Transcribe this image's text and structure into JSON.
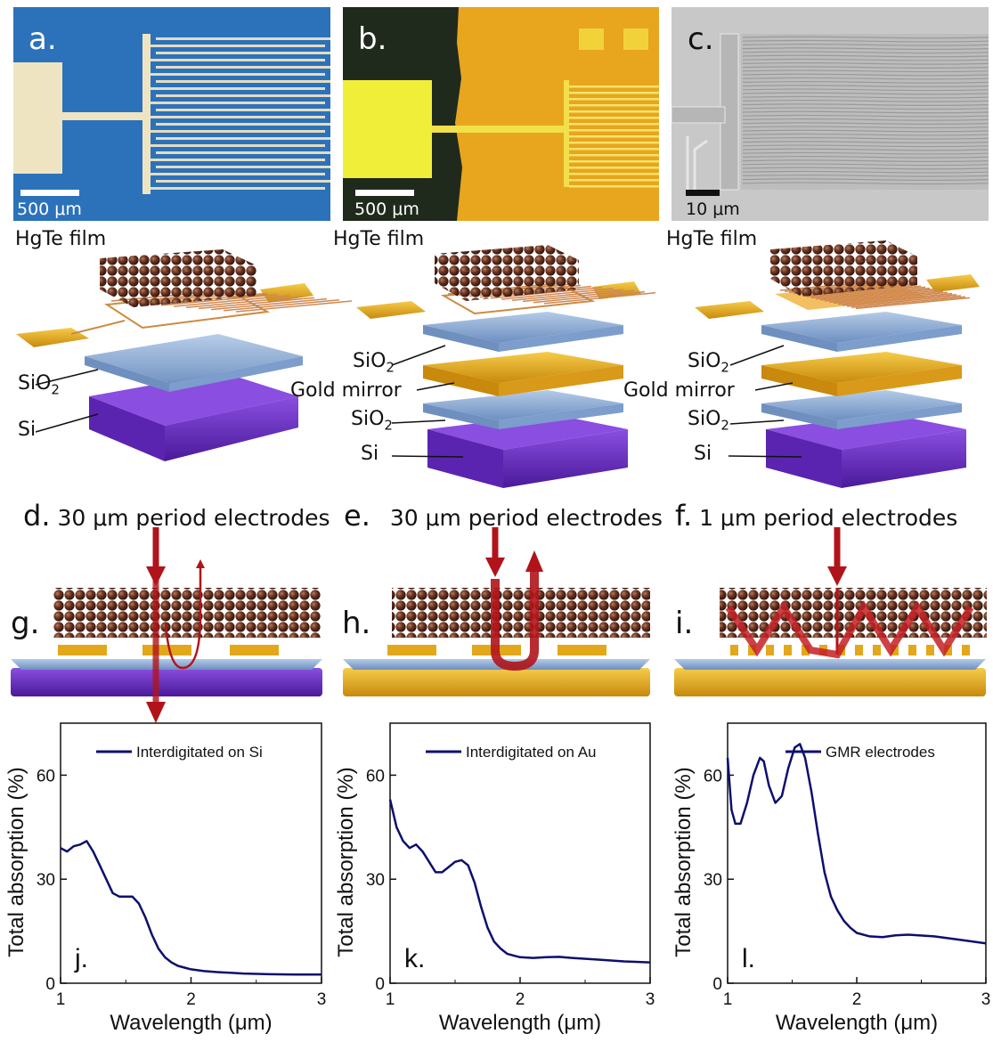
{
  "micrographs": [
    {
      "letter": "a.",
      "scale": "500 μm"
    },
    {
      "letter": "b.",
      "scale": "500 μm"
    },
    {
      "letter": "c.",
      "scale": "10 μm"
    }
  ],
  "stacks": [
    {
      "film": "HgTe film",
      "sio2_top": "SiO",
      "sio2_sub": "2",
      "si": "Si"
    },
    {
      "film": "HgTe film",
      "sio2_top": "SiO",
      "sio2_sub": "2",
      "gold": "Gold mirror",
      "sio2_bot": "SiO",
      "sio2_bot_sub": "2",
      "si": "Si"
    },
    {
      "film": "HgTe film",
      "sio2_top": "SiO",
      "sio2_sub": "2",
      "gold": "Gold mirror",
      "sio2_bot": "SiO",
      "sio2_bot_sub": "2",
      "si": "Si"
    }
  ],
  "periods": [
    {
      "letter": "d.",
      "text": "30 μm period electrodes"
    },
    {
      "letter": "e.",
      "text": "30 μm period electrodes"
    },
    {
      "letter": "f.",
      "text": "1 μm period electrodes"
    }
  ],
  "schematics": [
    {
      "letter": "g."
    },
    {
      "letter": "h."
    },
    {
      "letter": "i."
    }
  ],
  "colors": {
    "curve": "#0d0f6e",
    "si_purple": "#6a2bc4",
    "gold": "#e9b21c",
    "sio2_blue": "#8fb0d8",
    "nanocrystal": "#5a2e1c",
    "arrow": "#b0141a",
    "micro_a_bg": "#2a6fb6",
    "micro_b_bg": "#e6a21c",
    "micro_c_bg": "#c9c9c9"
  },
  "chart_data": [
    {
      "type": "line",
      "letter": "j.",
      "xlabel": "Wavelength (μm)",
      "ylabel": "Total absorption (%)",
      "xlim": [
        1,
        3
      ],
      "ylim": [
        0,
        75
      ],
      "xticks": [
        1,
        2,
        3
      ],
      "yticks": [
        0,
        30,
        60
      ],
      "series": [
        {
          "name": "Interdigitated on Si",
          "x": [
            1.0,
            1.05,
            1.1,
            1.15,
            1.2,
            1.25,
            1.3,
            1.35,
            1.4,
            1.45,
            1.5,
            1.55,
            1.6,
            1.65,
            1.7,
            1.75,
            1.8,
            1.85,
            1.9,
            1.95,
            2.0,
            2.1,
            2.2,
            2.3,
            2.4,
            2.6,
            2.8,
            3.0
          ],
          "y": [
            39,
            38,
            39.5,
            40,
            41,
            38,
            34,
            30,
            26,
            25,
            25,
            25,
            23,
            19,
            14,
            10,
            7.5,
            6,
            5,
            4.5,
            4,
            3.5,
            3.2,
            3,
            2.8,
            2.6,
            2.5,
            2.5
          ]
        }
      ]
    },
    {
      "type": "line",
      "letter": "k.",
      "xlabel": "Wavelength (μm)",
      "ylabel": "Total absorption (%)",
      "xlim": [
        1,
        3
      ],
      "ylim": [
        0,
        75
      ],
      "xticks": [
        1,
        2,
        3
      ],
      "yticks": [
        0,
        30,
        60
      ],
      "series": [
        {
          "name": "Interdigitated  on Au",
          "x": [
            1.0,
            1.05,
            1.1,
            1.15,
            1.2,
            1.25,
            1.3,
            1.35,
            1.4,
            1.45,
            1.5,
            1.55,
            1.6,
            1.65,
            1.7,
            1.75,
            1.8,
            1.85,
            1.9,
            1.95,
            2.0,
            2.1,
            2.2,
            2.3,
            2.4,
            2.6,
            2.8,
            3.0
          ],
          "y": [
            53,
            45,
            41,
            39,
            40,
            38,
            35,
            32,
            32,
            33.5,
            35,
            35.5,
            34,
            29,
            22,
            16,
            12,
            10,
            8.5,
            8,
            7.5,
            7.3,
            7.5,
            7.6,
            7.3,
            6.8,
            6.3,
            6
          ]
        }
      ]
    },
    {
      "type": "line",
      "letter": "l.",
      "xlabel": "Wavelength (μm)",
      "ylabel": "Total absorption (%)",
      "xlim": [
        1,
        3
      ],
      "ylim": [
        0,
        75
      ],
      "xticks": [
        1,
        2,
        3
      ],
      "yticks": [
        0,
        30,
        60
      ],
      "series": [
        {
          "name": "GMR electrodes",
          "x": [
            1.0,
            1.03,
            1.06,
            1.1,
            1.15,
            1.2,
            1.25,
            1.28,
            1.32,
            1.37,
            1.42,
            1.47,
            1.52,
            1.56,
            1.6,
            1.65,
            1.7,
            1.75,
            1.8,
            1.85,
            1.9,
            1.95,
            2.0,
            2.1,
            2.2,
            2.3,
            2.4,
            2.6,
            2.8,
            3.0
          ],
          "y": [
            65,
            50,
            46,
            46,
            52,
            60,
            65,
            64,
            57,
            52,
            54,
            62,
            68,
            69,
            65,
            55,
            43,
            32,
            25,
            21,
            18,
            16,
            14.5,
            13.5,
            13.3,
            13.8,
            14,
            13.5,
            12.5,
            11.5
          ]
        }
      ]
    }
  ]
}
